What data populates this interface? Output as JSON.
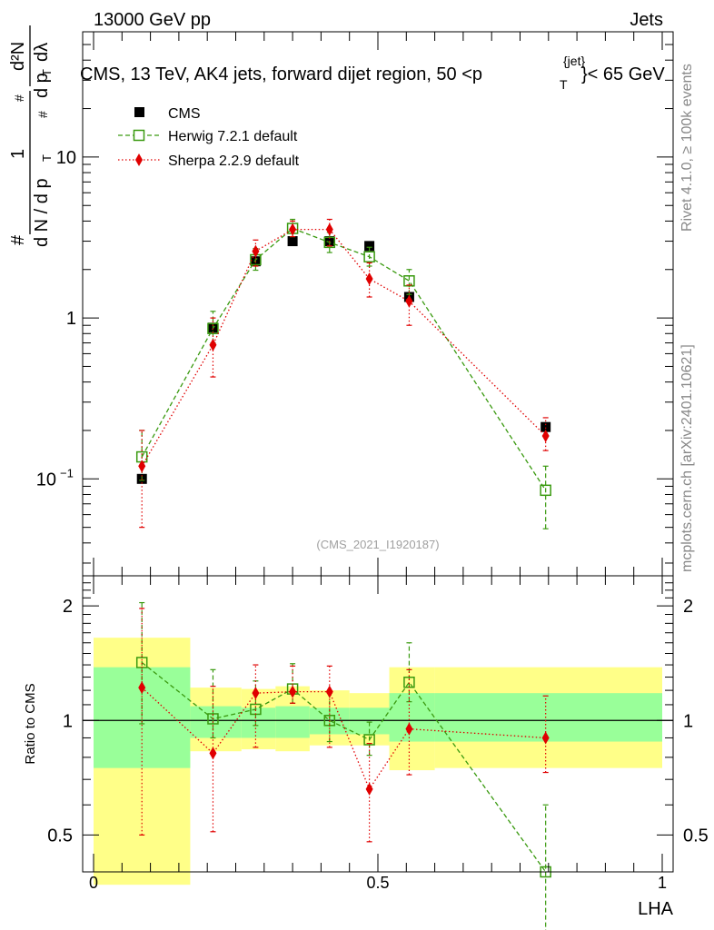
{
  "header": {
    "left": "13000 GeV pp",
    "right": "Jets"
  },
  "side_text": {
    "rivet": "Rivet 4.1.0, ≥ 100k events",
    "mcplots": "mcplots.cern.ch [arXiv:2401.10621]"
  },
  "ratio_panel": {
    "ylabel": "Ratio to CMS",
    "reference_value": 1,
    "ylim": [
      0.4,
      2.4
    ],
    "ticks": [
      {
        "value": 0.5,
        "label": "0.5"
      },
      {
        "value": 1,
        "label": "1"
      },
      {
        "value": 2,
        "label": "2"
      }
    ],
    "bands": {
      "edges": [
        0.0,
        0.17,
        0.26,
        0.32,
        0.38,
        0.45,
        0.52,
        0.6,
        1.0
      ],
      "inner": [
        [
          0.75,
          1.38
        ],
        [
          0.9,
          1.09
        ],
        [
          0.9,
          1.08
        ],
        [
          0.9,
          1.09
        ],
        [
          0.92,
          1.08
        ],
        [
          0.92,
          1.08
        ],
        [
          0.88,
          1.18
        ],
        [
          0.88,
          1.18
        ]
      ],
      "outer": [
        [
          0.37,
          1.65
        ],
        [
          0.83,
          1.22
        ],
        [
          0.84,
          1.21
        ],
        [
          0.83,
          1.23
        ],
        [
          0.86,
          1.2
        ],
        [
          0.86,
          1.18
        ],
        [
          0.74,
          1.38
        ],
        [
          0.75,
          1.38
        ]
      ]
    },
    "series": [
      {
        "name": "Herwig 7.2.1 default",
        "values": [
          1.42,
          1.01,
          1.07,
          1.21,
          1.0,
          0.89,
          1.26,
          0.4
        ],
        "low": [
          0.98,
          0.9,
          0.97,
          1.11,
          0.88,
          0.81,
          1.12,
          0.23
        ],
        "high": [
          2.04,
          1.36,
          1.27,
          1.41,
          1.18,
          0.99,
          1.6,
          0.6
        ]
      },
      {
        "name": "Sherpa 2.2.9 default",
        "values": [
          1.22,
          0.82,
          1.18,
          1.19,
          1.19,
          0.66,
          0.95,
          0.9
        ],
        "low": [
          0.5,
          0.51,
          0.85,
          1.11,
          0.85,
          0.48,
          0.72,
          0.73
        ],
        "high": [
          1.97,
          1.23,
          1.4,
          1.39,
          1.39,
          0.87,
          1.36,
          1.16
        ]
      }
    ]
  },
  "chart_data": {
    "type": "scatter",
    "title": "CMS, 13 TeV, AK4 jets, forward dijet region, 50 <p",
    "title_super": "{jet}",
    "title_sub": "T",
    "title_end": "}< 65 GeV",
    "ylabel_parts": {
      "num_top": "d²N",
      "num_hash": "#",
      "one": "1",
      "den_lhs": "d N / d p",
      "T": "T",
      "hash1": "#",
      "hash2": "#",
      "den_rhs": "d p",
      "den_rhs2": "dλ"
    },
    "xlabel": "LHA",
    "xlim": [
      0,
      1
    ],
    "ylim": [
      0.025,
      60
    ],
    "yscale": "log",
    "xticks": [
      "0",
      "0.5",
      "1"
    ],
    "yticks": [
      {
        "value": 0.1,
        "base": "10",
        "exp": "−1"
      },
      {
        "value": 1,
        "base": "1",
        "exp": ""
      },
      {
        "value": 10,
        "base": "10",
        "exp": ""
      }
    ],
    "watermark": "(CMS_2021_I1920187)",
    "legend_position": "top-left",
    "series": [
      {
        "name": "CMS",
        "marker": "filled-square",
        "color": "#000000",
        "x": [
          0.085,
          0.21,
          0.285,
          0.35,
          0.415,
          0.485,
          0.555,
          0.795
        ],
        "y": [
          0.1,
          0.87,
          2.25,
          3.0,
          3.0,
          2.8,
          1.35,
          0.21
        ],
        "ylow": [
          0.1,
          0.87,
          2.25,
          3.0,
          3.0,
          2.8,
          1.35,
          0.21
        ],
        "yhigh": [
          0.1,
          0.87,
          2.25,
          3.0,
          3.0,
          2.8,
          1.35,
          0.21
        ]
      },
      {
        "name": "Herwig 7.2.1 default",
        "marker": "open-square",
        "color": "#3a9a10",
        "x": [
          0.085,
          0.21,
          0.285,
          0.35,
          0.415,
          0.485,
          0.555,
          0.795
        ],
        "y": [
          0.137,
          0.86,
          2.3,
          3.6,
          2.95,
          2.4,
          1.7,
          0.085
        ],
        "ylow": [
          0.098,
          0.7,
          1.98,
          3.2,
          2.55,
          2.1,
          1.4,
          0.049
        ],
        "yhigh": [
          0.2,
          1.1,
          2.7,
          4.1,
          3.4,
          2.75,
          2.0,
          0.12
        ]
      },
      {
        "name": "Sherpa 2.2.9 default",
        "marker": "filled-diamond",
        "color": "#e00000",
        "x": [
          0.085,
          0.21,
          0.285,
          0.35,
          0.415,
          0.485,
          0.555,
          0.795
        ],
        "y": [
          0.12,
          0.68,
          2.6,
          3.55,
          3.55,
          1.75,
          1.27,
          0.185
        ],
        "ylow": [
          0.05,
          0.43,
          2.1,
          3.2,
          2.8,
          1.35,
          0.9,
          0.15
        ],
        "yhigh": [
          0.2,
          1.0,
          3.05,
          4.0,
          4.1,
          2.2,
          1.6,
          0.24
        ]
      }
    ]
  }
}
